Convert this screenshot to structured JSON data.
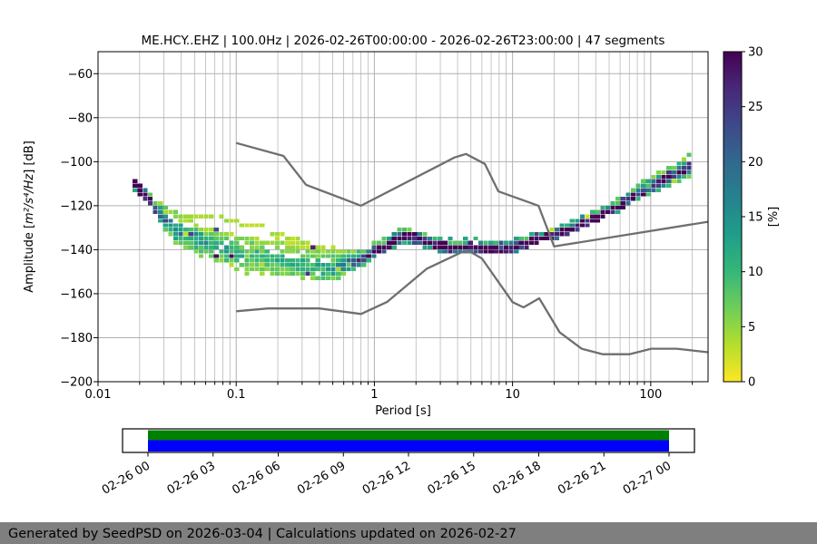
{
  "chart_data": [
    {
      "type": "heatmap",
      "title": "ME.HCY..EHZ | 100.0Hz | 2026-02-26T00:00:00 - 2026-02-26T23:00:00 | 47 segments",
      "xlabel": "Period [s]",
      "ylabel": "Amplitude [m²/s⁴/Hz] [dB]",
      "ylabel_parts": {
        "pre": "Amplitude [",
        "math": "m²/s⁴/Hz",
        "post": "] [dB]"
      },
      "x_scale": "log",
      "xlim": [
        0.01,
        260
      ],
      "ylim": [
        -200,
        -50
      ],
      "xtick_values": [
        0.01,
        0.1,
        1,
        10,
        100
      ],
      "xtick_labels": [
        "0.01",
        "0.1",
        "1",
        "10",
        "100"
      ],
      "ytick_values": [
        -200,
        -180,
        -160,
        -140,
        -120,
        -100,
        -80,
        -60
      ],
      "ytick_labels": [
        "−200",
        "−180",
        "−160",
        "−140",
        "−120",
        "−100",
        "−80",
        "−60"
      ],
      "grid": true,
      "grid_color": "#b0b0b0",
      "frame_color": "#000000",
      "colorbar": {
        "label": "[%]",
        "vmin": 0,
        "vmax": 30,
        "tick_values": [
          0,
          5,
          10,
          15,
          20,
          25,
          30
        ],
        "tick_labels": [
          "0",
          "5",
          "10",
          "15",
          "20",
          "25",
          "30"
        ],
        "viridis_r_stops": [
          "#fde725",
          "#b5de2b",
          "#6ece58",
          "#35b779",
          "#1f9e89",
          "#26828e",
          "#31688e",
          "#3e4989",
          "#482878",
          "#440154"
        ]
      },
      "ppsd": {
        "period_range": [
          0.0178,
          185
        ],
        "n_curves": 14,
        "seed": 9,
        "curve_offsets": [
          -0.8,
          -0.62,
          -0.46,
          -0.32,
          -0.2,
          -0.1,
          0,
          0.1,
          0.24,
          0.4,
          0.6,
          0.85,
          1.12,
          1.42
        ],
        "mode_curve": [
          [
            0.0178,
            -109.5
          ],
          [
            0.02,
            -113
          ],
          [
            0.023,
            -117.5
          ],
          [
            0.026,
            -122
          ],
          [
            0.03,
            -126.5
          ],
          [
            0.035,
            -130
          ],
          [
            0.045,
            -133.5
          ],
          [
            0.06,
            -136.5
          ],
          [
            0.08,
            -139
          ],
          [
            0.1,
            -140.5
          ],
          [
            0.13,
            -142
          ],
          [
            0.18,
            -143.5
          ],
          [
            0.25,
            -145
          ],
          [
            0.35,
            -146.5
          ],
          [
            0.45,
            -147
          ],
          [
            0.55,
            -146.5
          ],
          [
            0.65,
            -145.5
          ],
          [
            0.8,
            -143
          ],
          [
            1.0,
            -139.5
          ],
          [
            1.3,
            -136
          ],
          [
            1.6,
            -133
          ],
          [
            1.9,
            -133.5
          ],
          [
            2.3,
            -135.5
          ],
          [
            2.8,
            -137.5
          ],
          [
            3.5,
            -138.5
          ],
          [
            4.5,
            -138
          ],
          [
            5.5,
            -138.5
          ],
          [
            7,
            -138.5
          ],
          [
            8.5,
            -139
          ],
          [
            10,
            -138
          ],
          [
            12,
            -136.5
          ],
          [
            15,
            -134.5
          ],
          [
            20,
            -132
          ],
          [
            28,
            -128.5
          ],
          [
            40,
            -124
          ],
          [
            55,
            -119.5
          ],
          [
            75,
            -114.5
          ],
          [
            100,
            -110
          ],
          [
            140,
            -105.5
          ],
          [
            185,
            -101.5
          ]
        ],
        "halfwidth_curve": [
          [
            0.0178,
            1.8
          ],
          [
            0.02,
            2.2
          ],
          [
            0.025,
            3.2
          ],
          [
            0.03,
            4.5
          ],
          [
            0.04,
            6
          ],
          [
            0.06,
            7.5
          ],
          [
            0.08,
            8.5
          ],
          [
            0.1,
            9
          ],
          [
            0.15,
            9.8
          ],
          [
            0.2,
            10
          ],
          [
            0.3,
            9.8
          ],
          [
            0.4,
            8.5
          ],
          [
            0.5,
            7
          ],
          [
            0.6,
            5.5
          ],
          [
            0.7,
            4.2
          ],
          [
            0.8,
            3.2
          ],
          [
            1,
            2.6
          ],
          [
            1.5,
            2.4
          ],
          [
            2,
            2.4
          ],
          [
            3,
            2.1
          ],
          [
            5,
            1.9
          ],
          [
            8,
            1.9
          ],
          [
            12,
            2
          ],
          [
            20,
            2.2
          ],
          [
            35,
            2.4
          ],
          [
            60,
            2.7
          ],
          [
            100,
            3
          ],
          [
            140,
            3.2
          ],
          [
            185,
            3.6
          ]
        ]
      },
      "noise_models": {
        "color": "#6f6f6f",
        "nhnm": [
          [
            0.1,
            -91.5
          ],
          [
            0.22,
            -97.4
          ],
          [
            0.32,
            -110.5
          ],
          [
            0.8,
            -120.0
          ],
          [
            3.8,
            -98.1
          ],
          [
            4.6,
            -96.5
          ],
          [
            6.3,
            -101.0
          ],
          [
            7.9,
            -113.5
          ],
          [
            15.4,
            -120.0
          ],
          [
            20,
            -138.5
          ],
          [
            260,
            -127.3
          ]
        ],
        "nlnm": [
          [
            0.1,
            -168.0
          ],
          [
            0.17,
            -166.7
          ],
          [
            0.4,
            -166.7
          ],
          [
            0.8,
            -169.2
          ],
          [
            1.24,
            -163.7
          ],
          [
            2.4,
            -148.6
          ],
          [
            4.3,
            -141.1
          ],
          [
            5,
            -141.1
          ],
          [
            6,
            -144.0
          ],
          [
            10,
            -163.8
          ],
          [
            12,
            -166.2
          ],
          [
            15.6,
            -162.1
          ],
          [
            21.9,
            -177.5
          ],
          [
            31.6,
            -185.0
          ],
          [
            45,
            -187.5
          ],
          [
            70,
            -187.5
          ],
          [
            101,
            -185.0
          ],
          [
            154,
            -185.0
          ],
          [
            260,
            -186.6
          ]
        ]
      }
    },
    {
      "type": "coverage-timeline",
      "tick_labels": [
        "02-26 00",
        "02-26 03",
        "02-26 06",
        "02-26 09",
        "02-26 12",
        "02-26 15",
        "02-26 18",
        "02-26 21",
        "02-27 00"
      ],
      "span_range_ticks": [
        0,
        8
      ],
      "bands": [
        {
          "color": "#008000"
        },
        {
          "color": "#0000ff"
        }
      ]
    }
  ],
  "footer": {
    "text": "Generated by SeedPSD on 2026-03-04 | Calculations updated on 2026-02-27",
    "bg_color": "#7f7f7f",
    "text_color": "#ffffff"
  }
}
